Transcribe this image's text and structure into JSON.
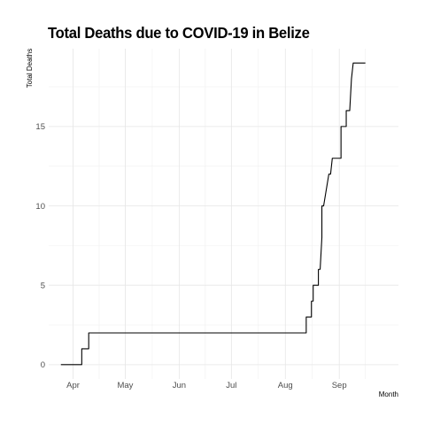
{
  "chart_data": {
    "type": "line",
    "title": "Total Deaths due to COVID-19 in Belize",
    "xlabel": "Month",
    "ylabel": "Total Deaths",
    "x_ticks": [
      "Apr",
      "May",
      "Jun",
      "Jul",
      "Aug",
      "Sep"
    ],
    "y_ticks": [
      0,
      5,
      10,
      15
    ],
    "ylim": [
      -0.9,
      19.9
    ],
    "xlim": [
      "2020-03-18",
      "2020-10-05"
    ],
    "grid": true,
    "legend": "none",
    "series": [
      {
        "color": "#000000",
        "points": [
          [
            "2020-03-25",
            0
          ],
          [
            "2020-04-06",
            0
          ],
          [
            "2020-04-06",
            1
          ],
          [
            "2020-04-10",
            1
          ],
          [
            "2020-04-10",
            2
          ],
          [
            "2020-08-13",
            2
          ],
          [
            "2020-08-13",
            3
          ],
          [
            "2020-08-16",
            3
          ],
          [
            "2020-08-16",
            4
          ],
          [
            "2020-08-17",
            4
          ],
          [
            "2020-08-17",
            5
          ],
          [
            "2020-08-20",
            5
          ],
          [
            "2020-08-20",
            6
          ],
          [
            "2020-08-21",
            6
          ],
          [
            "2020-08-22",
            8
          ],
          [
            "2020-08-22",
            10
          ],
          [
            "2020-08-23",
            10
          ],
          [
            "2020-08-26",
            12
          ],
          [
            "2020-08-27",
            12
          ],
          [
            "2020-08-28",
            13
          ],
          [
            "2020-09-02",
            13
          ],
          [
            "2020-09-02",
            15
          ],
          [
            "2020-09-05",
            15
          ],
          [
            "2020-09-05",
            16
          ],
          [
            "2020-09-07",
            16
          ],
          [
            "2020-09-08",
            18
          ],
          [
            "2020-09-09",
            19
          ],
          [
            "2020-09-16",
            19
          ]
        ]
      }
    ]
  }
}
